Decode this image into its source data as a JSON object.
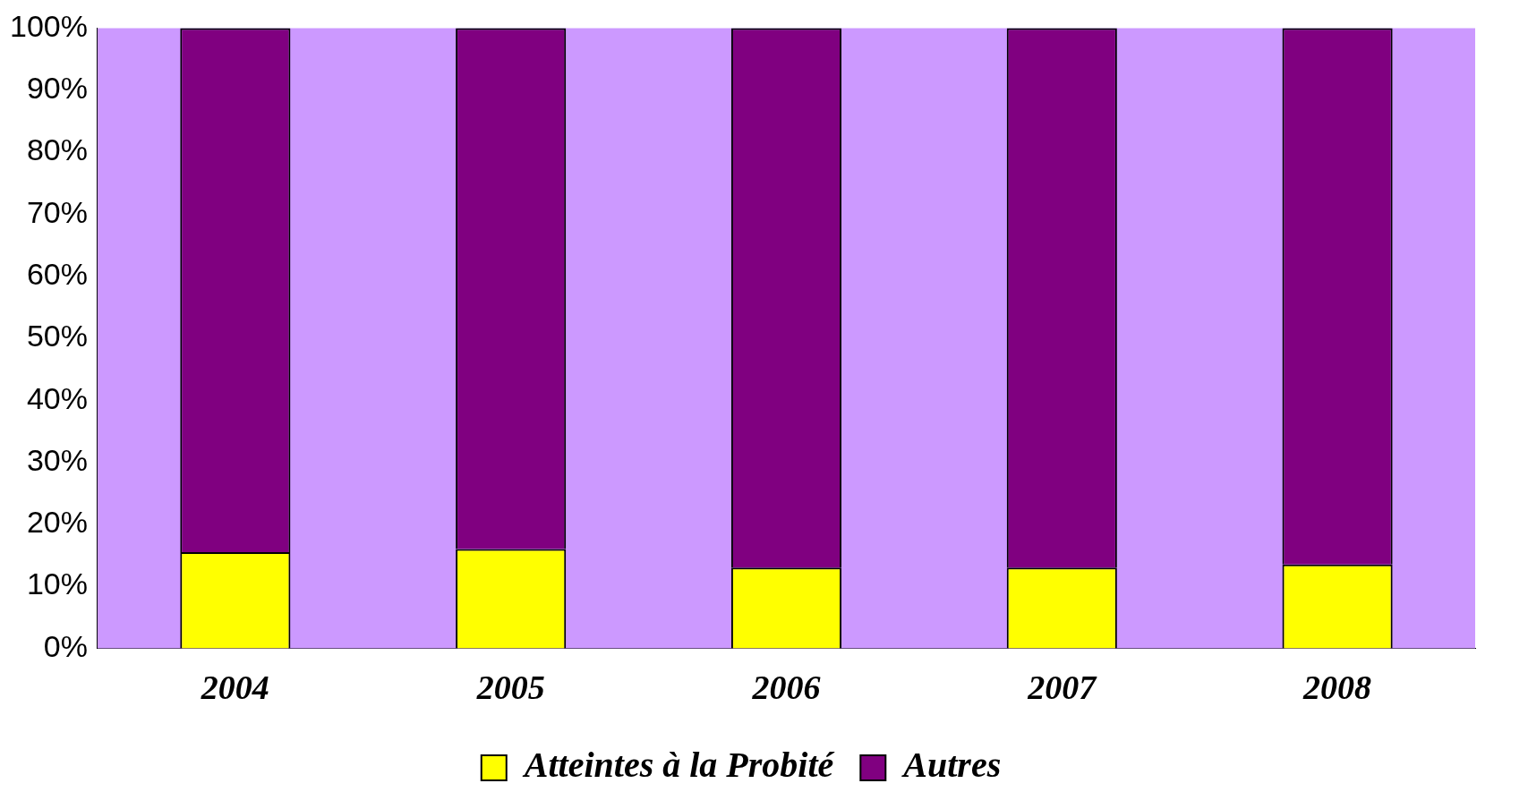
{
  "chart_data": {
    "type": "bar",
    "stacked": true,
    "categories": [
      "2004",
      "2005",
      "2006",
      "2007",
      "2008"
    ],
    "series": [
      {
        "name": "Atteintes à la Probité",
        "color": "#ffff00",
        "values": [
          15.5,
          16,
          13,
          13,
          13.5
        ]
      },
      {
        "name": "Autres",
        "color": "#800080",
        "values": [
          84.5,
          84,
          87,
          87,
          86.5
        ]
      }
    ],
    "ylim": [
      0,
      100
    ],
    "yticks": [
      {
        "value": 0,
        "label": "0%"
      },
      {
        "value": 10,
        "label": "10%"
      },
      {
        "value": 20,
        "label": "20%"
      },
      {
        "value": 30,
        "label": "30%"
      },
      {
        "value": 40,
        "label": "40%"
      },
      {
        "value": 50,
        "label": "50%"
      },
      {
        "value": 60,
        "label": "60%"
      },
      {
        "value": 70,
        "label": "70%"
      },
      {
        "value": 80,
        "label": "80%"
      },
      {
        "value": 90,
        "label": "90%"
      },
      {
        "value": 100,
        "label": "100%"
      }
    ],
    "grid": false,
    "legend": "bottom"
  }
}
